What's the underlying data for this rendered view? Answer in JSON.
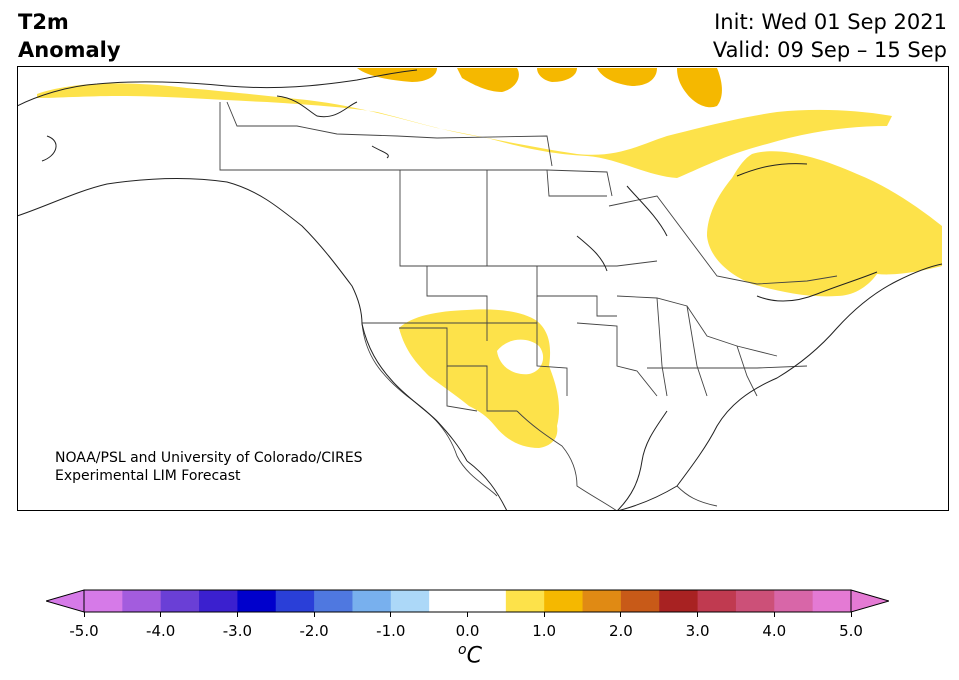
{
  "title": {
    "line1": "T2m",
    "line2": "Anomaly",
    "init": "Init: Wed 01 Sep 2021",
    "valid": "Valid: 09 Sep – 15 Sep"
  },
  "credit": {
    "line1": "NOAA/PSL and University of Colorado/CIRES",
    "line2": "Experimental LIM Forecast"
  },
  "colorbar": {
    "unit": "°C",
    "unit_display": "oC",
    "ticks": [
      "-5.0",
      "-4.0",
      "-3.0",
      "-2.0",
      "-1.0",
      "0.0",
      "1.0",
      "2.0",
      "3.0",
      "4.0",
      "5.0"
    ],
    "colors": [
      "#d67ae8",
      "#a35cde",
      "#6a3fd6",
      "#3b20cf",
      "#0000cc",
      "#2a3fd8",
      "#4f78e0",
      "#78b0ee",
      "#acd8f8",
      "#ffffff",
      "#ffffff",
      "#fde24a",
      "#f5b800",
      "#e08a14",
      "#c85a18",
      "#a82222",
      "#c03a50",
      "#cc5078",
      "#d866a8",
      "#e47ad4"
    ],
    "extend_left_color": "#d67ae8",
    "extend_right_color": "#e47ad4"
  },
  "map_colors": {
    "anomaly_0_5_to_1": "#fde24a",
    "anomaly_1_to_1_5": "#f5b800",
    "land": "#ffffff",
    "border": "#444444"
  }
}
